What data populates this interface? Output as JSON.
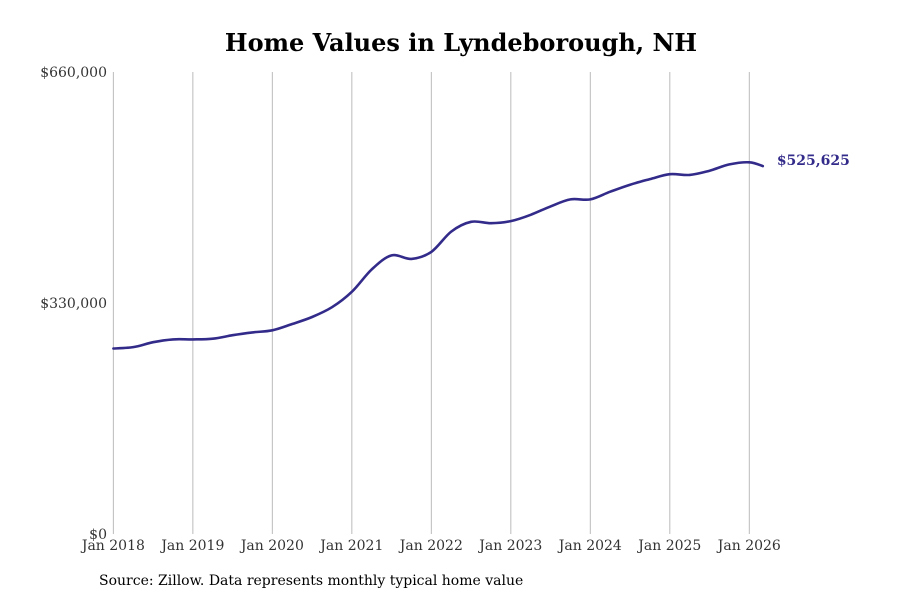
{
  "colors": {
    "line": "#332b8a",
    "grid": "#bbbbbb",
    "end_label": "#332b8a"
  },
  "chart_data": {
    "type": "line",
    "title": "Home Values in Lyndeborough, NH",
    "xlabel": "",
    "ylabel": "",
    "ylim": [
      0,
      660000
    ],
    "xlim": [
      2017.92,
      2026.6
    ],
    "y_ticks": [
      {
        "value": 0,
        "label": "$0"
      },
      {
        "value": 330000,
        "label": "$330,000"
      },
      {
        "value": 660000,
        "label": "$660,000"
      }
    ],
    "x_ticks": [
      {
        "value": 2018,
        "label": "Jan 2018"
      },
      {
        "value": 2019,
        "label": "Jan 2019"
      },
      {
        "value": 2020,
        "label": "Jan 2020"
      },
      {
        "value": 2021,
        "label": "Jan 2021"
      },
      {
        "value": 2022,
        "label": "Jan 2022"
      },
      {
        "value": 2023,
        "label": "Jan 2023"
      },
      {
        "value": 2024,
        "label": "Jan 2024"
      },
      {
        "value": 2025,
        "label": "Jan 2025"
      },
      {
        "value": 2026,
        "label": "Jan 2026"
      }
    ],
    "grid": {
      "vertical": true,
      "horizontal": false
    },
    "series": [
      {
        "name": "Typical home value",
        "x": [
          2018.0,
          2018.25,
          2018.5,
          2018.75,
          2019.0,
          2019.25,
          2019.5,
          2019.75,
          2020.0,
          2020.25,
          2020.5,
          2020.75,
          2021.0,
          2021.25,
          2021.5,
          2021.75,
          2022.0,
          2022.25,
          2022.5,
          2022.75,
          2023.0,
          2023.25,
          2023.5,
          2023.75,
          2024.0,
          2024.25,
          2024.5,
          2024.75,
          2025.0,
          2025.25,
          2025.5,
          2025.75,
          2026.0,
          2026.17
        ],
        "values": [
          265000,
          267000,
          274000,
          278000,
          278000,
          279000,
          284000,
          288000,
          291000,
          300000,
          310000,
          324000,
          346000,
          378000,
          398000,
          393000,
          403000,
          432000,
          446000,
          444000,
          447000,
          456000,
          468000,
          478000,
          478000,
          489000,
          499000,
          507000,
          514000,
          513000,
          519000,
          528000,
          531000,
          525625
        ],
        "end_label": "$525,625"
      }
    ]
  },
  "source": "Source: Zillow. Data represents monthly typical home value"
}
